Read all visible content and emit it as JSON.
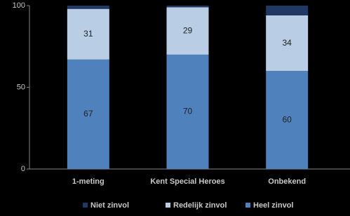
{
  "chart_data": {
    "type": "stacked-bar",
    "categories": [
      "1-meting",
      "Kent Special Heroes",
      "Onbekend"
    ],
    "series": [
      {
        "name": "Heel zinvol",
        "color": "#4f81bd",
        "values": [
          67,
          70,
          60
        ],
        "show_labels": true
      },
      {
        "name": "Redelijk zinvol",
        "color": "#b9cde5",
        "values": [
          31,
          29,
          34
        ],
        "show_labels": true
      },
      {
        "name": "Niet zinvol",
        "color": "#1f3864",
        "values": [
          2,
          1,
          6
        ],
        "show_labels": false
      }
    ],
    "legend_order": [
      2,
      1,
      0
    ],
    "ylim": [
      0,
      100
    ],
    "yticks": [
      0,
      50,
      100
    ],
    "grid": false,
    "legend": "bottom"
  }
}
